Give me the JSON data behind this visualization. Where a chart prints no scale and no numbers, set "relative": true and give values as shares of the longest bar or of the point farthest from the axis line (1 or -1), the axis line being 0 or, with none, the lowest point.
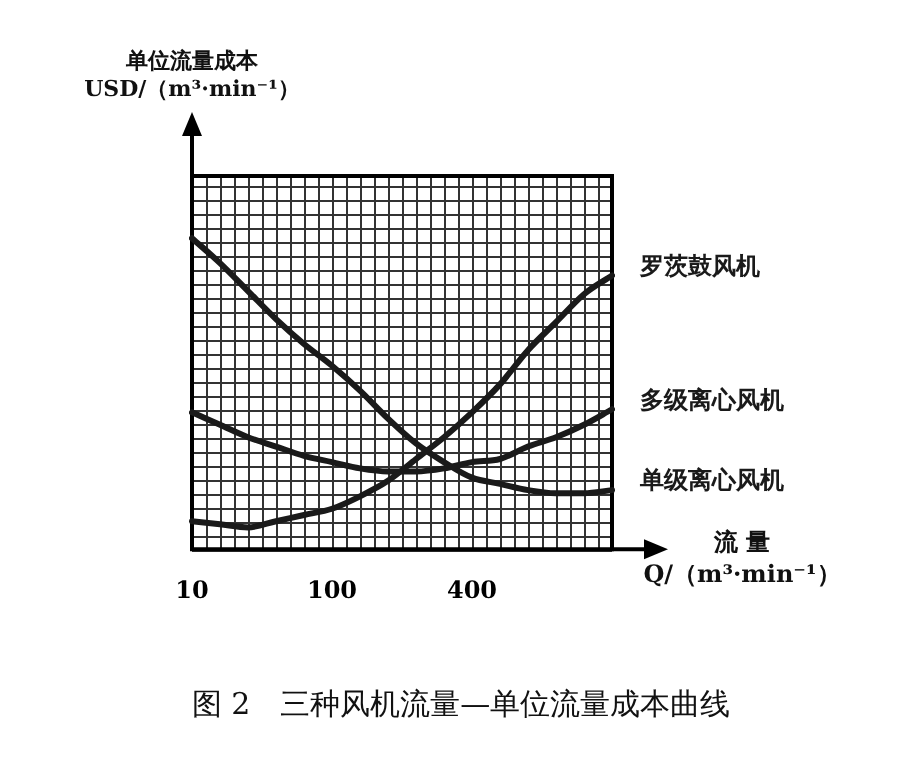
{
  "chart_data": {
    "type": "line",
    "relative": true,
    "title": "图 2　三种风机流量—单位流量成本曲线",
    "annotations": [
      "单位流量成本\nUSD/（m³·min⁻¹）"
    ],
    "xlabel": "流 量\nQ/（m³·min⁻¹）",
    "categories": [
      "10",
      null,
      null,
      null,
      null,
      "100",
      null,
      null,
      null,
      null,
      "400",
      null,
      null,
      null,
      null,
      null
    ],
    "series": [
      {
        "name": "罗茨鼓风机",
        "color": "#1a1a1a",
        "values": [
          0.09,
          0.08,
          0.07,
          0.09,
          0.11,
          0.13,
          0.17,
          0.22,
          0.29,
          0.36,
          0.44,
          0.53,
          0.64,
          0.73,
          0.82,
          0.88
        ]
      },
      {
        "name": "多级离心风机",
        "color": "#1a1a1a",
        "values": [
          0.44,
          0.4,
          0.36,
          0.33,
          0.3,
          0.28,
          0.26,
          0.25,
          0.25,
          0.26,
          0.28,
          0.29,
          0.33,
          0.36,
          0.4,
          0.45
        ]
      },
      {
        "name": "单级离心风机",
        "color": "#1a1a1a",
        "values": [
          1.0,
          0.92,
          0.83,
          0.74,
          0.66,
          0.59,
          0.51,
          0.42,
          0.34,
          0.28,
          0.23,
          0.21,
          0.19,
          0.18,
          0.18,
          0.19
        ]
      }
    ],
    "grid": true,
    "legend": false,
    "marker": "none",
    "line_style": "solid"
  }
}
